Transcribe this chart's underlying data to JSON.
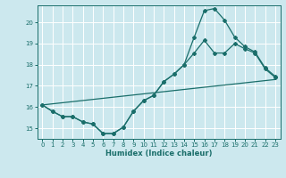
{
  "xlabel": "Humidex (Indice chaleur)",
  "bg_color": "#cce8ee",
  "line_color": "#1a6e6a",
  "grid_color": "#ffffff",
  "xlim": [
    -0.5,
    23.5
  ],
  "ylim": [
    14.5,
    20.8
  ],
  "yticks": [
    15,
    16,
    17,
    18,
    19,
    20
  ],
  "xticks": [
    0,
    1,
    2,
    3,
    4,
    5,
    6,
    7,
    8,
    9,
    10,
    11,
    12,
    13,
    14,
    15,
    16,
    17,
    18,
    19,
    20,
    21,
    22,
    23
  ],
  "line1_x": [
    0,
    1,
    2,
    3,
    4,
    5,
    6,
    7,
    8,
    9,
    10,
    11,
    12,
    13,
    14,
    15,
    16,
    17,
    18,
    19,
    20,
    21,
    22,
    23
  ],
  "line1_y": [
    16.1,
    15.8,
    15.55,
    15.55,
    15.3,
    15.2,
    14.75,
    14.75,
    15.05,
    15.8,
    16.3,
    16.55,
    17.2,
    17.55,
    18.0,
    18.55,
    19.15,
    18.55,
    18.55,
    19.0,
    18.75,
    18.55,
    17.8,
    17.4
  ],
  "line2_x": [
    0,
    1,
    2,
    3,
    4,
    5,
    6,
    7,
    8,
    9,
    10,
    11,
    12,
    13,
    14,
    15,
    16,
    17,
    18,
    19,
    20,
    21,
    22,
    23
  ],
  "line2_y": [
    16.1,
    15.8,
    15.55,
    15.55,
    15.3,
    15.2,
    14.75,
    14.75,
    15.05,
    15.8,
    16.3,
    16.55,
    17.2,
    17.55,
    18.0,
    19.3,
    20.55,
    20.65,
    20.1,
    19.3,
    18.85,
    18.6,
    17.85,
    17.45
  ],
  "line3_x": [
    0,
    23
  ],
  "line3_y": [
    16.1,
    17.3
  ]
}
